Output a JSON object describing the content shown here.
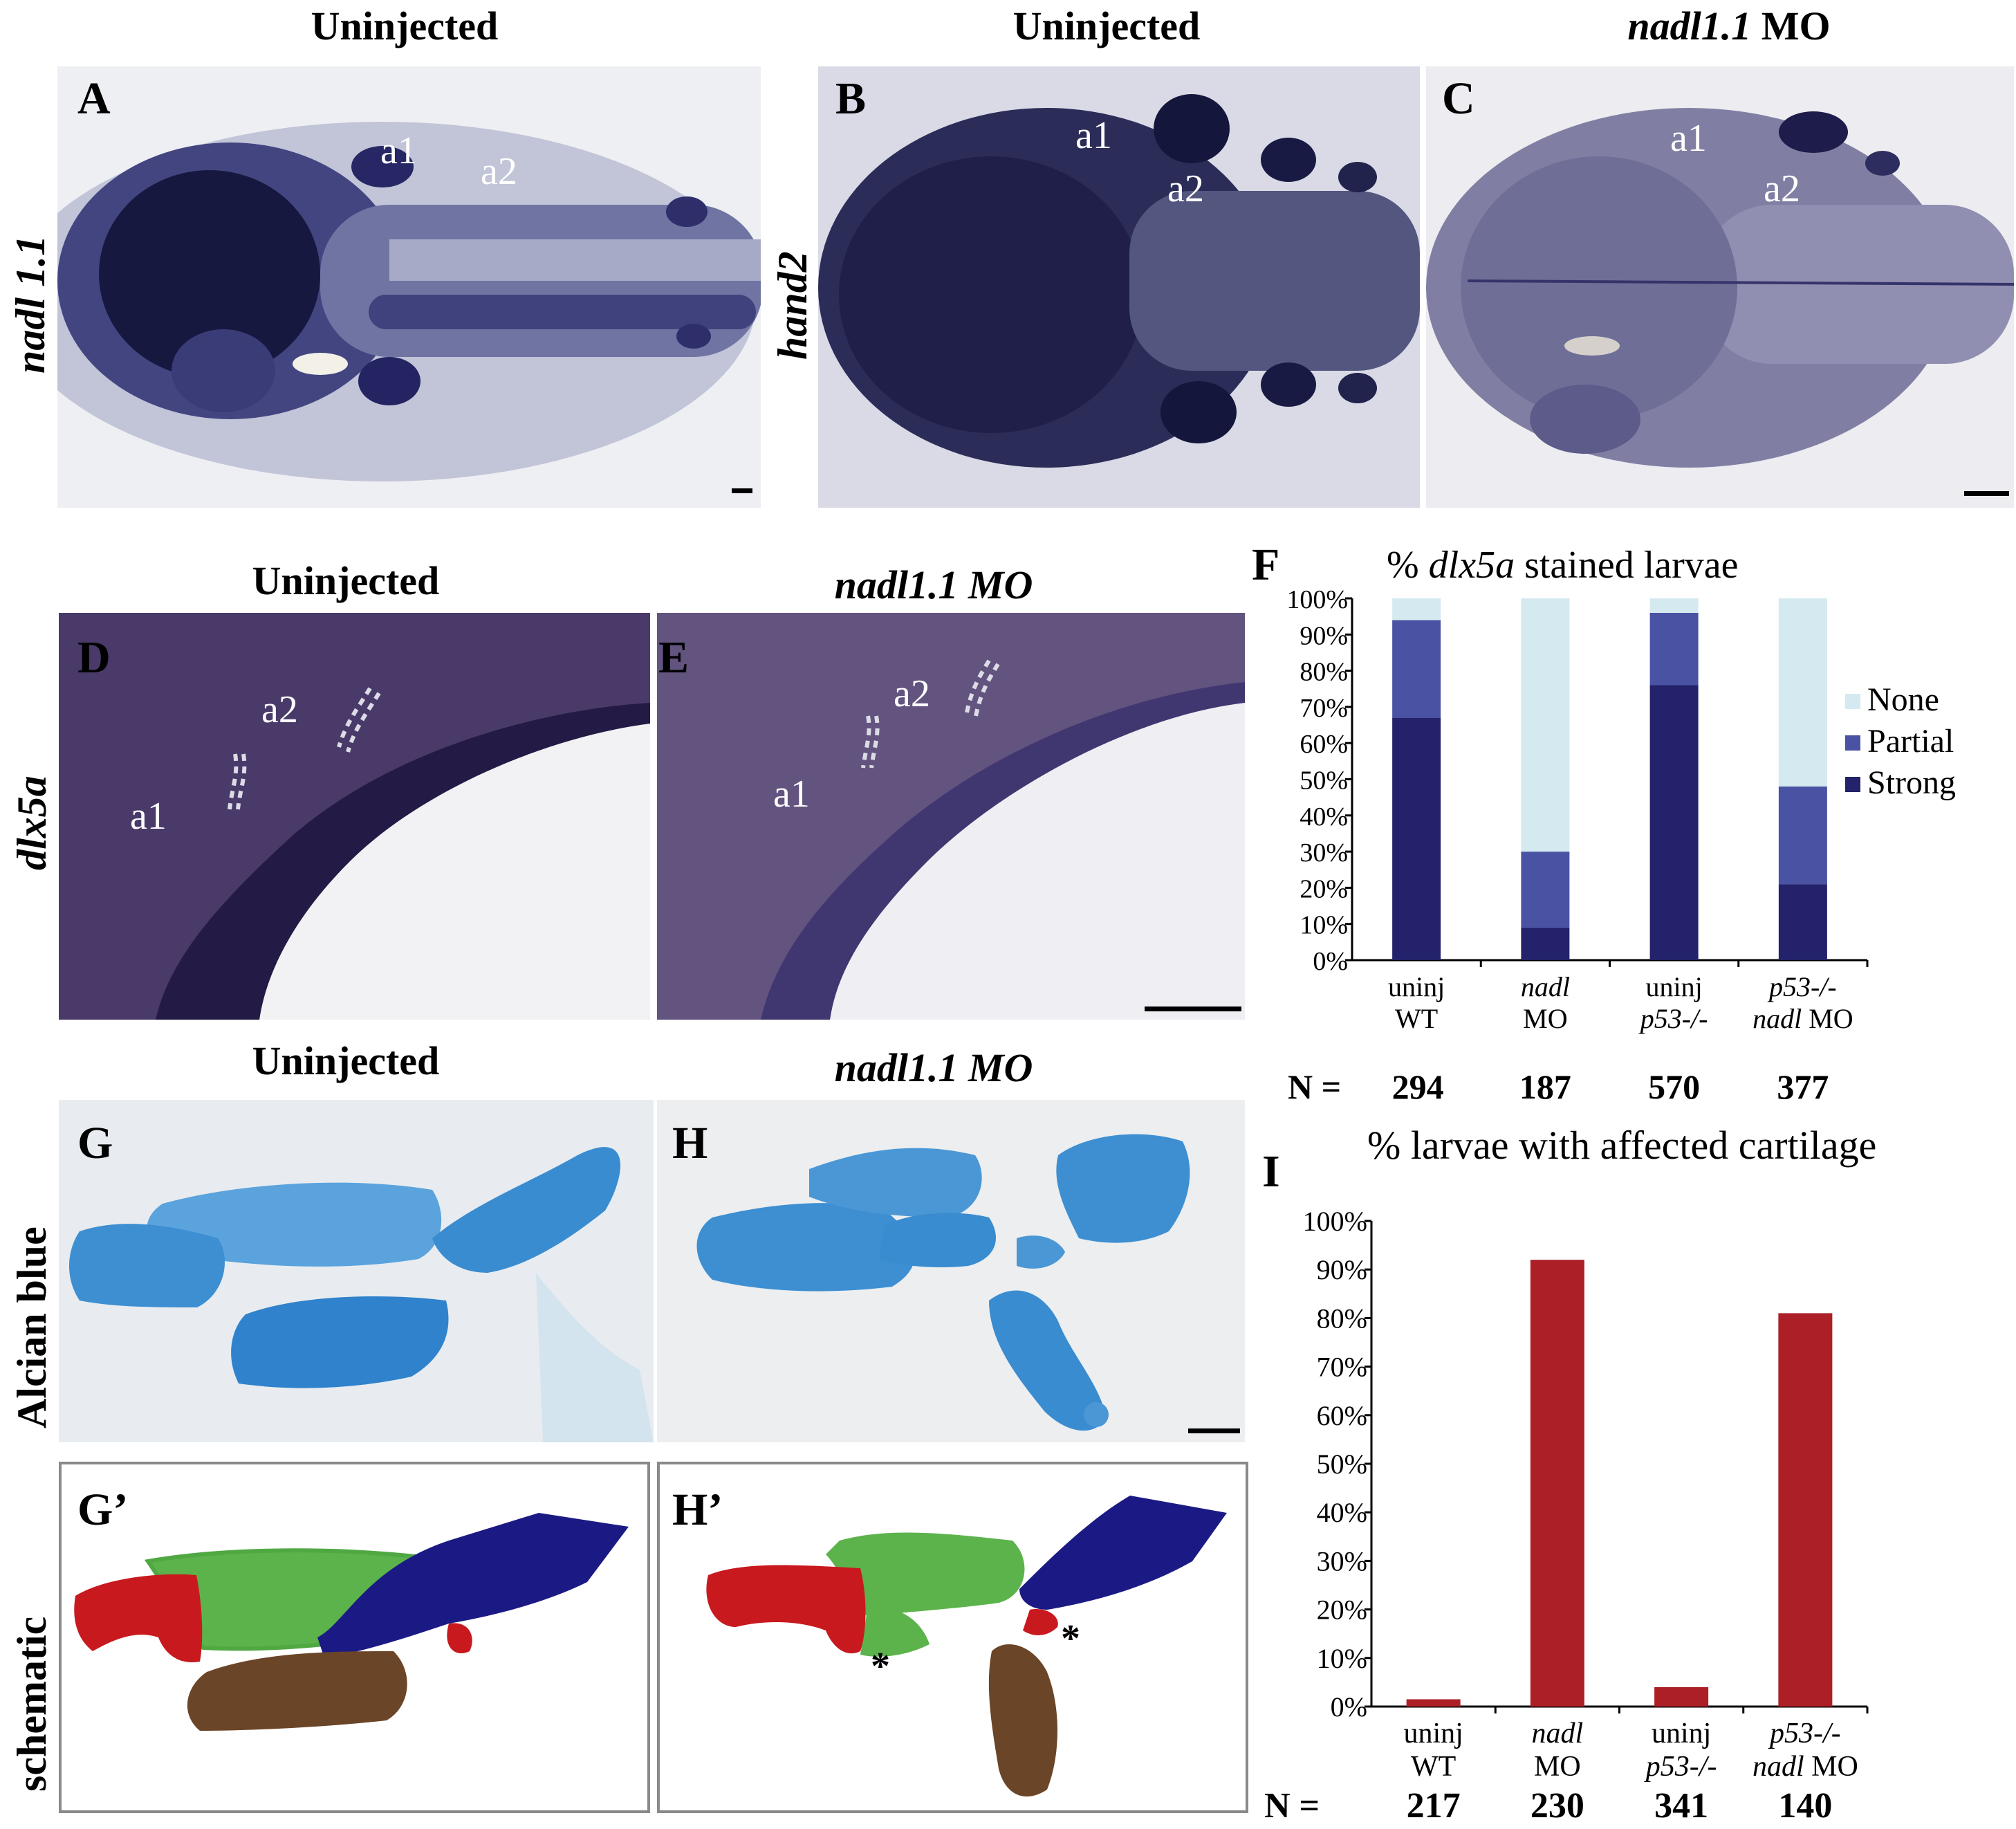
{
  "row1": {
    "titles": [
      {
        "text": "Uninjected",
        "italic": false,
        "suffix": ""
      },
      {
        "text": "Uninjected",
        "italic": false,
        "suffix": ""
      },
      {
        "text": "nadl1.1",
        "italic": true,
        "suffix": " MO"
      }
    ],
    "panels": [
      {
        "letter": "A",
        "a1": "a1",
        "a2": "a2"
      },
      {
        "letter": "B",
        "a1": "a1",
        "a2": "a2"
      },
      {
        "letter": "C",
        "a1": "a1",
        "a2": "a2"
      }
    ],
    "row_labels": [
      "nadl 1.1",
      "hand2"
    ]
  },
  "row2": {
    "titles": [
      "Uninjected",
      "nadl1.1 MO"
    ],
    "panels": [
      {
        "letter": "D",
        "a1": "a1",
        "a2": "a2"
      },
      {
        "letter": "E",
        "a1": "a1",
        "a2": "a2"
      }
    ],
    "row_label": "dlx5a"
  },
  "row3": {
    "titles": [
      "Uninjected",
      "nadl1.1 MO"
    ],
    "panels": [
      {
        "letter": "G"
      },
      {
        "letter": "H"
      }
    ],
    "row_label": "Alcian blue"
  },
  "row4": {
    "panels": [
      {
        "letter": "G’"
      },
      {
        "letter": "H’"
      }
    ],
    "row_label": "schematic",
    "asterisk": "*"
  },
  "colors": {
    "stain_dark": "#1e1b4a",
    "alcian": "#3d8fd2",
    "red": "#c8191e",
    "green": "#55b246",
    "blue": "#1b1a84",
    "brown": "#6b4528",
    "none_color": "#d5e9f0",
    "partial_color": "#4a53a3",
    "strong_color": "#23226b",
    "bar_red": "#ad1f27"
  },
  "chart_data": [
    {
      "panel": "F",
      "type": "bar",
      "stacked": true,
      "title_prefix": "% ",
      "title_gene": "dlx5a",
      "title_suffix": " stained larvae",
      "yticks": [
        "0%",
        "10%",
        "20%",
        "30%",
        "40%",
        "50%",
        "60%",
        "70%",
        "80%",
        "90%",
        "100%"
      ],
      "ylim": [
        0,
        100
      ],
      "categories": [
        {
          "line1": "uninj",
          "line1_italic": false,
          "line2": "WT",
          "line2_italic": false,
          "line2_suffix": ""
        },
        {
          "line1": "nadl",
          "line1_italic": true,
          "line2": "MO",
          "line2_italic": false,
          "line2_suffix": ""
        },
        {
          "line1": "uninj",
          "line1_italic": false,
          "line2": "p53-/-",
          "line2_italic": true,
          "line2_suffix": ""
        },
        {
          "line1": "p53-/-",
          "line1_italic": true,
          "line2": "nadl",
          "line2_italic": true,
          "line2_suffix": " MO"
        }
      ],
      "series": [
        {
          "name": "Strong",
          "values": [
            67,
            9,
            76,
            21
          ]
        },
        {
          "name": "Partial",
          "values": [
            27,
            21,
            20,
            27
          ]
        },
        {
          "name": "None",
          "values": [
            6,
            70,
            4,
            52
          ]
        }
      ],
      "legend": [
        "None",
        "Partial",
        "Strong"
      ],
      "legend_position": "right",
      "n_label": "N = ",
      "n_values": [
        "294",
        "187",
        "570",
        "377"
      ]
    },
    {
      "panel": "I",
      "type": "bar",
      "title": "% larvae with affected cartilage",
      "yticks": [
        "0%",
        "10%",
        "20%",
        "30%",
        "40%",
        "50%",
        "60%",
        "70%",
        "80%",
        "90%",
        "100%"
      ],
      "ylim": [
        0,
        100
      ],
      "categories": [
        {
          "line1": "uninj",
          "line1_italic": false,
          "line2": "WT",
          "line2_italic": false,
          "line2_suffix": ""
        },
        {
          "line1": "nadl",
          "line1_italic": true,
          "line2": "MO",
          "line2_italic": false,
          "line2_suffix": ""
        },
        {
          "line1": "uninj",
          "line1_italic": false,
          "line2": "p53-/-",
          "line2_italic": true,
          "line2_suffix": ""
        },
        {
          "line1": "p53-/-",
          "line1_italic": true,
          "line2": "nadl",
          "line2_italic": true,
          "line2_suffix": " MO"
        }
      ],
      "values": [
        1.5,
        92,
        4,
        81
      ],
      "n_label": "N =",
      "n_values": [
        "217",
        "230",
        "341",
        "140"
      ]
    }
  ]
}
